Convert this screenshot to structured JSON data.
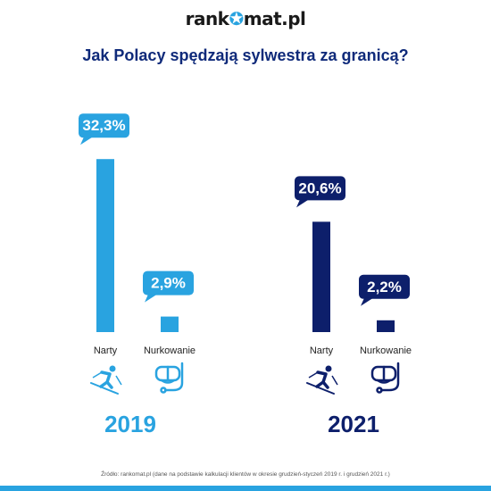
{
  "logo": "rankomat.pl",
  "title": "Jak Polacy spędzają sylwestra za granicą?",
  "source": "Źródło: rankomat.pl (dane na podstawie kalkulacji klientów w okresie grudzień-styczeń 2019 r. i grudzień 2021 r.)",
  "colors": {
    "2019": "#29a3e0",
    "2021": "#0d1f6b",
    "title": "#0f2a7a",
    "accent": "#29a3e0"
  },
  "icons": {
    "skiing": "skier-icon",
    "diving": "diving-mask-icon"
  },
  "chart_data": {
    "type": "bar",
    "title": "Jak Polacy spędzają sylwestra za granicą?",
    "categories": [
      "Narty",
      "Nurkowanie"
    ],
    "series": [
      {
        "name": "2019",
        "values": [
          32.3,
          2.9
        ],
        "labels": [
          "32,3%",
          "2,9%"
        ]
      },
      {
        "name": "2021",
        "values": [
          20.6,
          2.2
        ],
        "labels": [
          "20,6%",
          "2,2%"
        ]
      }
    ],
    "unit": "%",
    "legend": "none",
    "grid": false
  }
}
